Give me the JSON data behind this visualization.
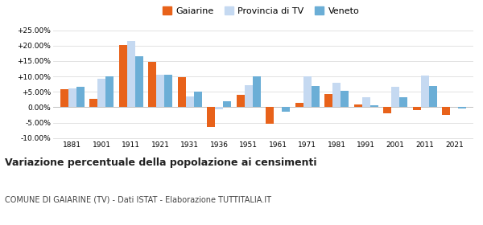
{
  "years": [
    1881,
    1901,
    1911,
    1921,
    1931,
    1936,
    1951,
    1961,
    1971,
    1981,
    1991,
    2001,
    2011,
    2021
  ],
  "gaiarine": [
    5.8,
    2.8,
    20.3,
    14.7,
    9.8,
    -6.5,
    4.0,
    -5.3,
    1.5,
    4.2,
    0.8,
    -2.0,
    -1.0,
    -2.5
  ],
  "provincia_tv": [
    6.0,
    9.2,
    21.5,
    10.5,
    3.5,
    -0.8,
    7.2,
    0.0,
    9.9,
    8.0,
    3.2,
    6.5,
    10.2,
    0.0
  ],
  "veneto": [
    6.6,
    10.0,
    16.5,
    10.5,
    5.0,
    2.0,
    9.9,
    -1.5,
    7.0,
    5.2,
    0.7,
    3.3,
    7.0,
    -0.5
  ],
  "color_gaiarine": "#e8621a",
  "color_provincia": "#c5d9f1",
  "color_veneto": "#6baed6",
  "title": "Variazione percentuale della popolazione ai censimenti",
  "subtitle": "COMUNE DI GAIARINE (TV) - Dati ISTAT - Elaborazione TUTTITALIA.IT",
  "ylim": [
    -10.5,
    27.5
  ],
  "yticks": [
    -10,
    -5,
    0,
    5,
    10,
    15,
    20,
    25
  ],
  "ytick_labels": [
    "-10.00%",
    "-5.00%",
    "0.00%",
    "+5.00%",
    "+10.00%",
    "+15.00%",
    "+20.00%",
    "+25.00%"
  ],
  "bar_width": 0.27,
  "background_color": "#ffffff",
  "grid_color": "#dddddd"
}
